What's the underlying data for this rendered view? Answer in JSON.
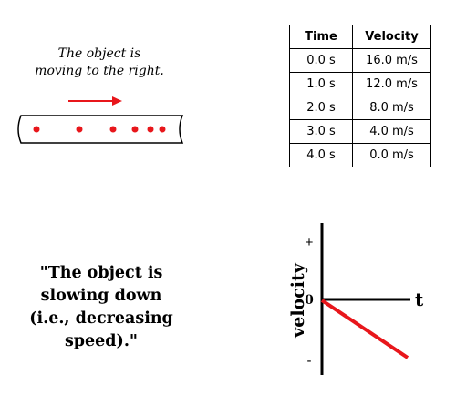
{
  "motion_diagram": {
    "caption_line1": "The object is",
    "caption_line2": "moving to the right.",
    "dot_color": "#e8161b",
    "arrow_color": "#e8161b"
  },
  "table": {
    "headers": [
      "Time",
      "Velocity"
    ],
    "rows": [
      [
        "0.0 s",
        "16.0 m/s"
      ],
      [
        "1.0 s",
        "12.0 m/s"
      ],
      [
        "2.0 s",
        "8.0 m/s"
      ],
      [
        "3.0 s",
        "4.0 m/s"
      ],
      [
        "4.0 s",
        "0.0 m/s"
      ]
    ]
  },
  "statement": {
    "line1": "\"The object is",
    "line2": "slowing down",
    "line3": "(i.e., decreasing",
    "line4": "speed).\""
  },
  "graph": {
    "y_label": "velocity",
    "x_label": "t",
    "plus_label": "+",
    "zero_label": "0",
    "minus_label": "-",
    "line_color": "#e8161b"
  }
}
